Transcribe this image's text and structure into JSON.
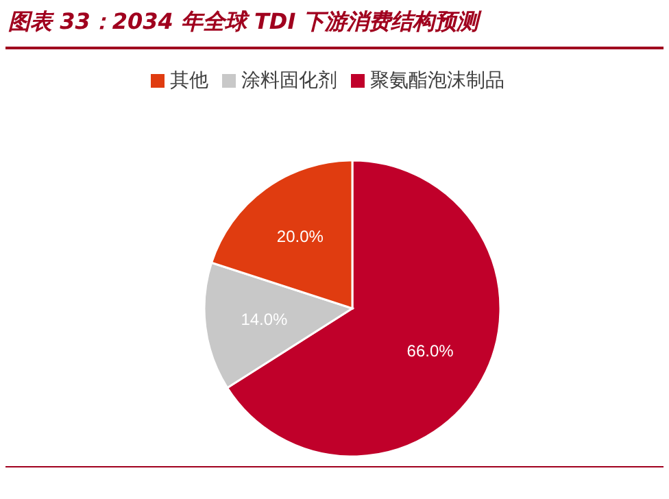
{
  "chart_data": {
    "type": "pie",
    "title": "图表 33：2034 年全球 TDI 下游消费结构预测",
    "categories": [
      "聚氨酯泡沫制品",
      "涂料固化剂",
      "其他"
    ],
    "values": [
      66,
      14,
      20
    ],
    "colors": [
      "#c0002a",
      "#c8c8c8",
      "#e03c10"
    ],
    "value_labels": [
      "66.0%",
      "14.0%",
      "20.0%"
    ],
    "legend": "top"
  }
}
